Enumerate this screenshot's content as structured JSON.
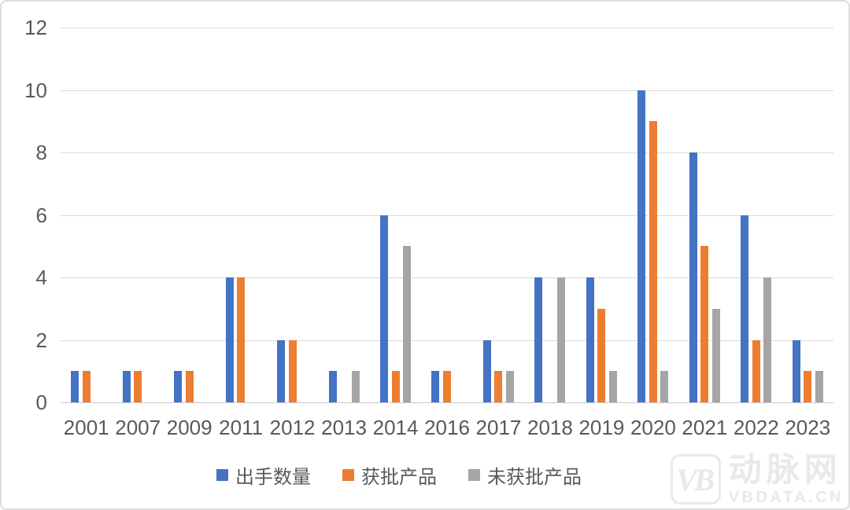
{
  "chart_data": {
    "type": "bar",
    "title": "",
    "xlabel": "",
    "ylabel": "",
    "categories": [
      "2001",
      "2007",
      "2009",
      "2011",
      "2012",
      "2013",
      "2014",
      "2016",
      "2017",
      "2018",
      "2019",
      "2020",
      "2021",
      "2022",
      "2023"
    ],
    "series": [
      {
        "name": "出手数量",
        "color": "#4472C4",
        "values": [
          1,
          1,
          1,
          4,
          2,
          1,
          6,
          1,
          2,
          4,
          4,
          10,
          8,
          6,
          2
        ]
      },
      {
        "name": "获批产品",
        "color": "#ED7D31",
        "values": [
          1,
          1,
          1,
          4,
          2,
          0,
          1,
          1,
          1,
          0,
          3,
          9,
          5,
          2,
          1
        ]
      },
      {
        "name": "未获批产品",
        "color": "#A5A5A5",
        "values": [
          0,
          0,
          0,
          0,
          0,
          1,
          5,
          0,
          1,
          4,
          1,
          1,
          3,
          4,
          1
        ]
      }
    ],
    "ylim": [
      0,
      12
    ],
    "yticks": [
      0,
      2,
      4,
      6,
      8,
      10,
      12
    ],
    "grid": true,
    "legend_position": "bottom"
  },
  "watermark": {
    "logo_text": "VB",
    "brand_text": "动脉网",
    "url_text": "VBDATA.CN"
  },
  "colors": {
    "axis_text": "#595959",
    "gridline": "#DADADA",
    "watermark": "#E9E9E9"
  }
}
